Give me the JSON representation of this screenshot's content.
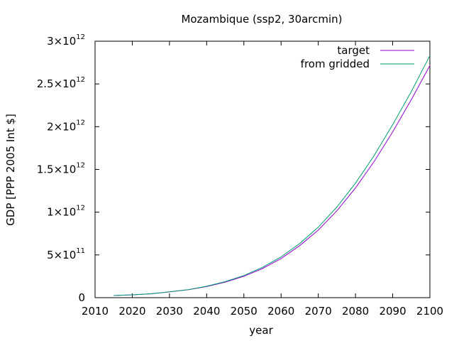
{
  "chart_data": {
    "type": "line",
    "title": "Mozambique (ssp2, 30arcmin)",
    "xlabel": "year",
    "ylabel": "GDP [PPP 2005 Int $]",
    "xlim": [
      2010,
      2100
    ],
    "ylim": [
      0,
      3000000000000
    ],
    "xticks": [
      2010,
      2020,
      2030,
      2040,
      2050,
      2060,
      2070,
      2080,
      2090,
      2100
    ],
    "yticks": [
      {
        "value": 0,
        "mant": "0",
        "exp": ""
      },
      {
        "value": 500000000000,
        "mant": "5×10",
        "exp": "11"
      },
      {
        "value": 1000000000000,
        "mant": "1×10",
        "exp": "12"
      },
      {
        "value": 1500000000000,
        "mant": "1.5×10",
        "exp": "12"
      },
      {
        "value": 2000000000000,
        "mant": "2×10",
        "exp": "12"
      },
      {
        "value": 2500000000000,
        "mant": "2.5×10",
        "exp": "12"
      },
      {
        "value": 3000000000000,
        "mant": "3×10",
        "exp": "12"
      }
    ],
    "grid": false,
    "legend_position": "top-right",
    "series": [
      {
        "name": "target",
        "color": "#9400d3",
        "x": [
          2015,
          2020,
          2025,
          2030,
          2035,
          2040,
          2045,
          2050,
          2055,
          2060,
          2065,
          2070,
          2075,
          2080,
          2085,
          2090,
          2095,
          2100
        ],
        "y": [
          25000000000,
          33000000000,
          45000000000,
          67000000000,
          92000000000,
          130000000000,
          182000000000,
          250000000000,
          341000000000,
          458000000000,
          608000000000,
          790000000000,
          1016000000000,
          1283000000000,
          1591000000000,
          1940000000000,
          2316000000000,
          2716000000000
        ]
      },
      {
        "name": "from gridded",
        "color": "#009e73",
        "x": [
          2015,
          2020,
          2025,
          2030,
          2035,
          2040,
          2045,
          2050,
          2055,
          2060,
          2065,
          2070,
          2075,
          2080,
          2085,
          2090,
          2095,
          2100
        ],
        "y": [
          25000000000,
          33000000000,
          46000000000,
          68000000000,
          94000000000,
          134000000000,
          188000000000,
          259000000000,
          355000000000,
          477000000000,
          633000000000,
          824000000000,
          1060000000000,
          1339000000000,
          1661000000000,
          2024000000000,
          2410000000000,
          2832000000000
        ]
      }
    ]
  }
}
